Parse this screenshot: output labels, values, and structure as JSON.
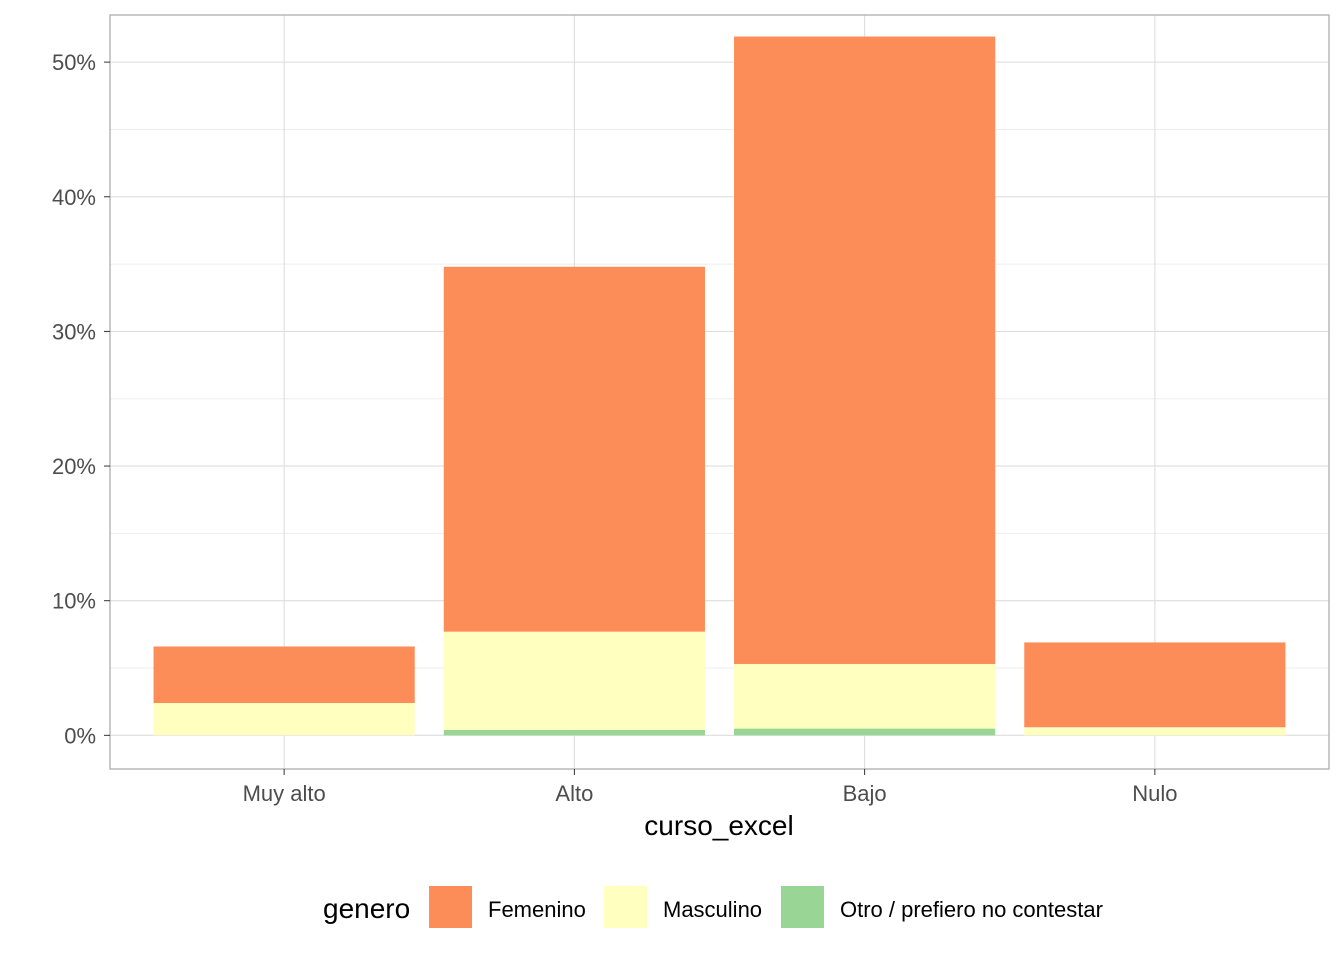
{
  "chart_data": {
    "type": "bar",
    "stacked": true,
    "categories": [
      "Muy alto",
      "Alto",
      "Bajo",
      "Nulo"
    ],
    "series": [
      {
        "name": "Otro / prefiero no contestar",
        "color": "#99d594",
        "values": [
          0.0,
          0.4,
          0.5,
          0.0
        ]
      },
      {
        "name": "Masculino",
        "color": "#ffffbf",
        "values": [
          2.4,
          7.3,
          4.8,
          0.6
        ]
      },
      {
        "name": "Femenino",
        "color": "#fc8d59",
        "values": [
          4.2,
          27.1,
          46.6,
          6.3
        ]
      }
    ],
    "xlabel": "curso_excel",
    "ylabel": "",
    "ylim": [
      -2.5,
      53.5
    ],
    "yticks": [
      0,
      10,
      20,
      30,
      40,
      50
    ],
    "ytick_labels": [
      "0%",
      "10%",
      "20%",
      "30%",
      "40%",
      "50%"
    ],
    "grid": true,
    "legend": {
      "title": "genero",
      "position": "bottom",
      "entries": [
        "Femenino",
        "Masculino",
        "Otro / prefiero no contestar"
      ]
    }
  }
}
